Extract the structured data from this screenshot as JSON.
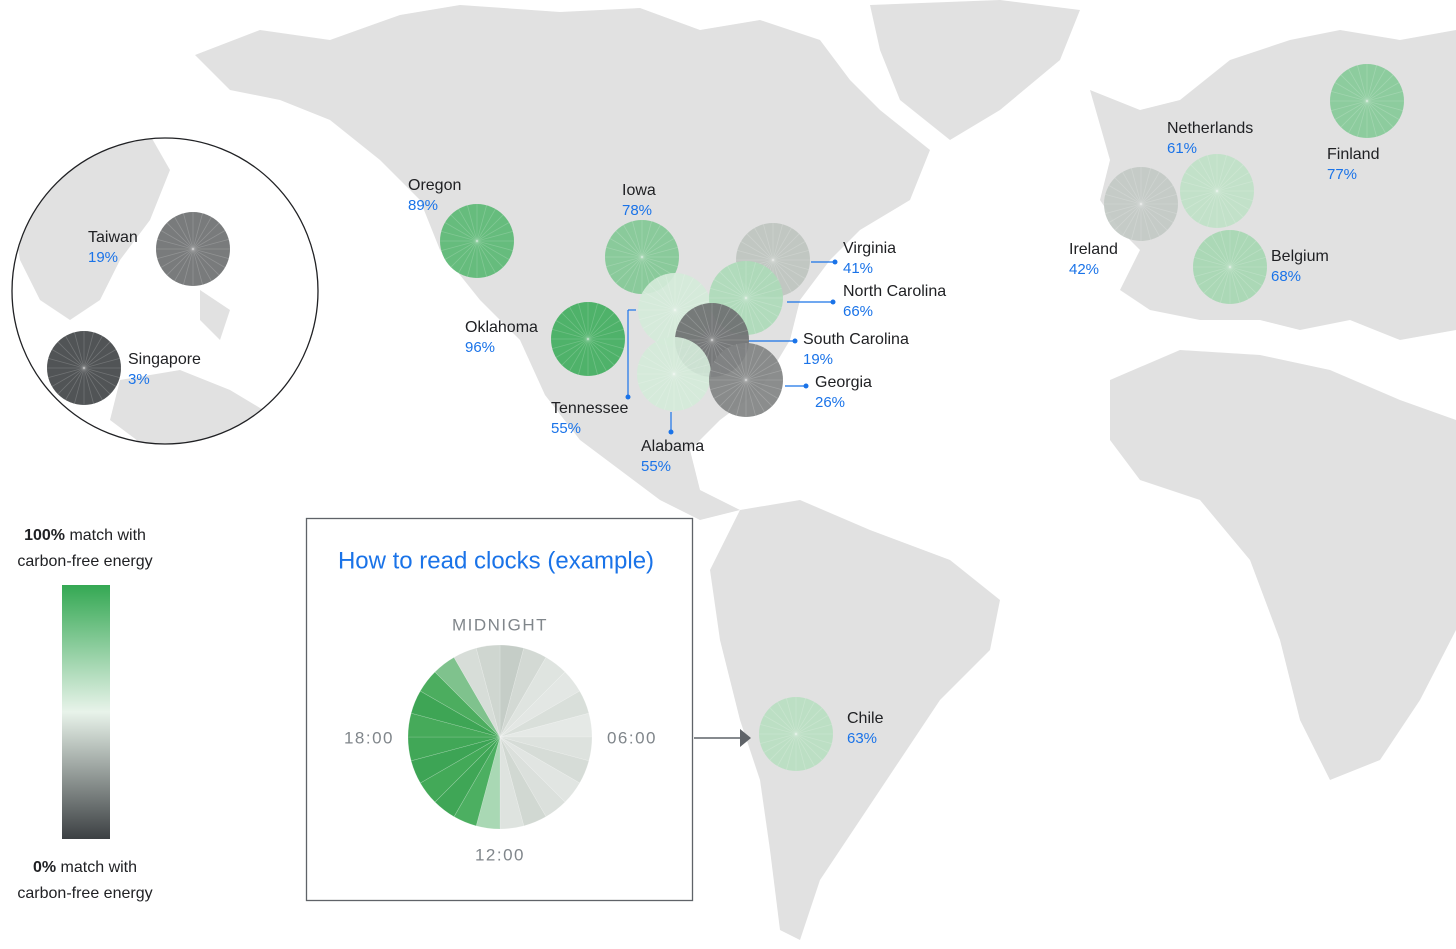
{
  "map": {
    "locations": [
      {
        "name": "Oregon",
        "value": 89,
        "label": "89%"
      },
      {
        "name": "Iowa",
        "value": 78,
        "label": "78%"
      },
      {
        "name": "Oklahoma",
        "value": 96,
        "label": "96%"
      },
      {
        "name": "Tennessee",
        "value": 55,
        "label": "55%"
      },
      {
        "name": "Alabama",
        "value": 55,
        "label": "55%"
      },
      {
        "name": "Virginia",
        "value": 41,
        "label": "41%"
      },
      {
        "name": "North Carolina",
        "value": 66,
        "label": "66%"
      },
      {
        "name": "South Carolina",
        "value": 19,
        "label": "19%"
      },
      {
        "name": "Georgia",
        "value": 26,
        "label": "26%"
      },
      {
        "name": "Taiwan",
        "value": 19,
        "label": "19%"
      },
      {
        "name": "Singapore",
        "value": 3,
        "label": "3%"
      },
      {
        "name": "Netherlands",
        "value": 61,
        "label": "61%"
      },
      {
        "name": "Ireland",
        "value": 42,
        "label": "42%"
      },
      {
        "name": "Finland",
        "value": 77,
        "label": "77%"
      },
      {
        "name": "Belgium",
        "value": 68,
        "label": "68%"
      },
      {
        "name": "Chile",
        "value": 63,
        "label": "63%"
      }
    ],
    "legend": {
      "top": {
        "bold": "100%",
        "text": "match with",
        "line2": "carbon-free energy"
      },
      "bottom": {
        "bold": "0%",
        "text": "match with",
        "line2": "carbon-free energy"
      }
    },
    "example": {
      "title": "How to read clocks (example)",
      "top": "MIDNIGHT",
      "right": "06:00",
      "bottom": "12:00",
      "left": "18:00"
    }
  }
}
